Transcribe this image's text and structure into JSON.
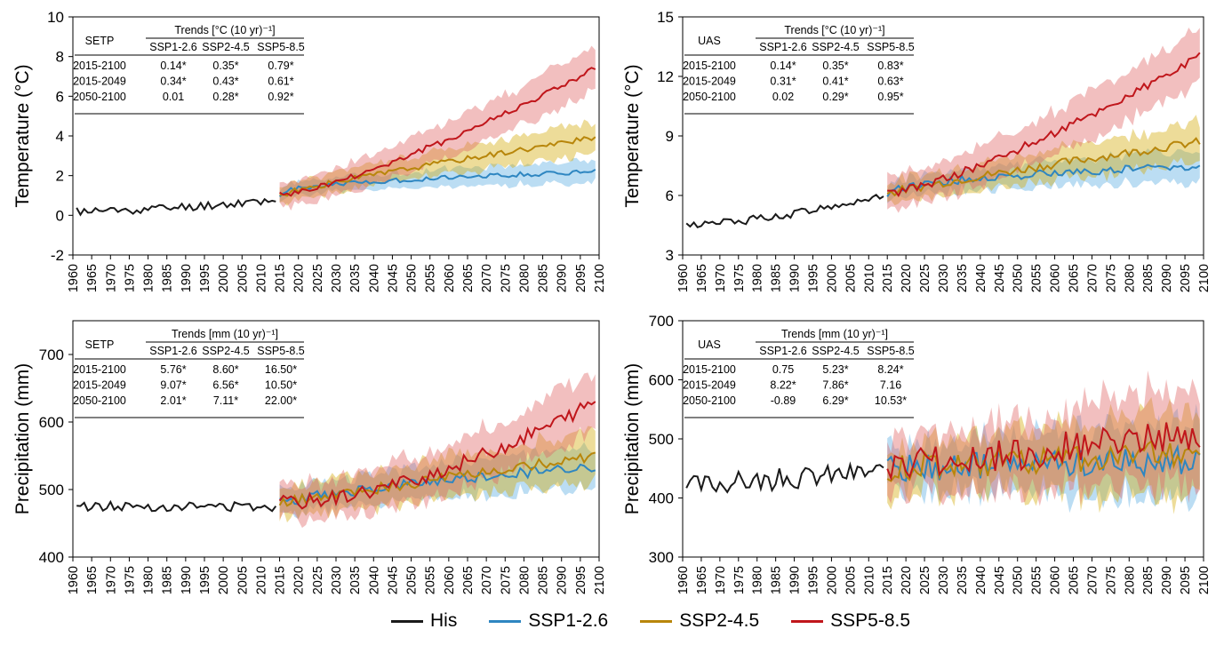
{
  "legend": [
    {
      "label": "His",
      "color": "#1a1a1a"
    },
    {
      "label": "SSP1-2.6",
      "color": "#2e86c1"
    },
    {
      "label": "SSP2-4.5",
      "color": "#b8860b"
    },
    {
      "label": "SSP5-8.5",
      "color": "#c0161b"
    }
  ],
  "colors": {
    "his": "#1a1a1a",
    "ssp126": "#2e86c1",
    "ssp126_band": "#5dade2",
    "ssp245": "#b8860b",
    "ssp245_band": "#d4ac0d",
    "ssp585": "#c0161b",
    "ssp585_band": "#e06666"
  },
  "chart_data": [
    {
      "id": "setp-temp",
      "type": "line",
      "ylabel": "Temperature (°C)",
      "xlim": [
        1960,
        2100
      ],
      "ylim": [
        -2,
        10
      ],
      "yticks": [
        "-2",
        "0",
        "2",
        "4",
        "6",
        "8",
        "10"
      ],
      "xticks": [
        "1960",
        "1965",
        "1970",
        "1975",
        "1980",
        "1985",
        "1990",
        "1995",
        "2000",
        "2005",
        "2010",
        "2015",
        "2020",
        "2025",
        "2030",
        "2035",
        "2040",
        "2045",
        "2050",
        "2055",
        "2060",
        "2065",
        "2070",
        "2075",
        "2080",
        "2085",
        "2090",
        "2095",
        "2100"
      ],
      "his": {
        "start": 0.2,
        "end": 0.8,
        "noise": 0.22,
        "band": 0,
        "seed": 11,
        "x0": 1961,
        "x1": 2014,
        "bend": 1.6
      },
      "ssp126": {
        "start": 1.0,
        "end": 2.2,
        "noise": 0.12,
        "band": 0.55,
        "seed": 21,
        "x0": 2015,
        "x1": 2099,
        "bend": 0.45
      },
      "ssp245": {
        "start": 1.0,
        "end": 3.9,
        "noise": 0.14,
        "band": 0.8,
        "seed": 31,
        "x0": 2015,
        "x1": 2099,
        "bend": 0.85
      },
      "ssp585": {
        "start": 1.0,
        "end": 7.4,
        "noise": 0.16,
        "band": 1.1,
        "seed": 41,
        "x0": 2015,
        "x1": 2099,
        "bend": 1.3
      },
      "table": {
        "region": "SETP",
        "header": "Trends [°C (10 yr)⁻¹]",
        "columns": [
          "SSP1-2.6",
          "SSP2-4.5",
          "SSP5-8.5"
        ],
        "rows": [
          {
            "period": "2015-2100",
            "values": [
              "0.14*",
              "0.35*",
              "0.79*"
            ]
          },
          {
            "period": "2015-2049",
            "values": [
              "0.34*",
              "0.43*",
              "0.61*"
            ]
          },
          {
            "period": "2050-2100",
            "values": [
              "0.01",
              "0.28*",
              "0.92*"
            ]
          }
        ]
      }
    },
    {
      "id": "uas-temp",
      "type": "line",
      "ylabel": "Temperature (°C)",
      "xlim": [
        1960,
        2100
      ],
      "ylim": [
        3,
        15
      ],
      "yticks": [
        "3",
        "6",
        "9",
        "12",
        "15"
      ],
      "xticks": [
        "1960",
        "1965",
        "1970",
        "1975",
        "1980",
        "1985",
        "1990",
        "1995",
        "2000",
        "2005",
        "2010",
        "2015",
        "2020",
        "2025",
        "2030",
        "2035",
        "2040",
        "2045",
        "2050",
        "2055",
        "2060",
        "2065",
        "2070",
        "2075",
        "2080",
        "2085",
        "2090",
        "2095",
        "2100"
      ],
      "his": {
        "start": 4.5,
        "end": 6.0,
        "noise": 0.2,
        "band": 0,
        "seed": 12,
        "x0": 1961,
        "x1": 2014,
        "bend": 1.5
      },
      "ssp126": {
        "start": 6.1,
        "end": 7.5,
        "noise": 0.2,
        "band": 0.8,
        "seed": 22,
        "x0": 2015,
        "x1": 2099,
        "bend": 0.5
      },
      "ssp245": {
        "start": 6.1,
        "end": 8.7,
        "noise": 0.22,
        "band": 1.0,
        "seed": 32,
        "x0": 2015,
        "x1": 2099,
        "bend": 0.9
      },
      "ssp585": {
        "start": 6.1,
        "end": 13.0,
        "noise": 0.22,
        "band": 1.4,
        "seed": 42,
        "x0": 2015,
        "x1": 2099,
        "bend": 1.3
      },
      "table": {
        "region": "UAS",
        "header": "Trends [°C (10 yr)⁻¹]",
        "columns": [
          "SSP1-2.6",
          "SSP2-4.5",
          "SSP5-8.5"
        ],
        "rows": [
          {
            "period": "2015-2100",
            "values": [
              "0.14*",
              "0.35*",
              "0.83*"
            ]
          },
          {
            "period": "2015-2049",
            "values": [
              "0.31*",
              "0.41*",
              "0.63*"
            ]
          },
          {
            "period": "2050-2100",
            "values": [
              "0.02",
              "0.29*",
              "0.95*"
            ]
          }
        ]
      }
    },
    {
      "id": "setp-precip",
      "type": "line",
      "ylabel": "Precipitation (mm)",
      "xlim": [
        1960,
        2100
      ],
      "ylim": [
        400,
        750
      ],
      "yticks": [
        "400",
        "500",
        "600",
        "700"
      ],
      "yticks_values": [
        400,
        500,
        600,
        700
      ],
      "xticks": [
        "1960",
        "1965",
        "1970",
        "1975",
        "1980",
        "1985",
        "1990",
        "1995",
        "2000",
        "2005",
        "2010",
        "2015",
        "2020",
        "2025",
        "2030",
        "2035",
        "2040",
        "2045",
        "2050",
        "2055",
        "2060",
        "2065",
        "2070",
        "2075",
        "2080",
        "2085",
        "2090",
        "2095",
        "2100"
      ],
      "his": {
        "start": 475,
        "end": 475,
        "noise": 7,
        "band": 0,
        "seed": 13,
        "x0": 1961,
        "x1": 2014,
        "bend": 1.0
      },
      "ssp126": {
        "start": 480,
        "end": 535,
        "noise": 8,
        "band": 32,
        "seed": 23,
        "x0": 2015,
        "x1": 2099,
        "bend": 0.8
      },
      "ssp245": {
        "start": 480,
        "end": 550,
        "noise": 8,
        "band": 38,
        "seed": 33,
        "x0": 2015,
        "x1": 2099,
        "bend": 1.0
      },
      "ssp585": {
        "start": 480,
        "end": 630,
        "noise": 11,
        "band": 45,
        "seed": 43,
        "x0": 2015,
        "x1": 2099,
        "bend": 1.7
      },
      "table": {
        "region": "SETP",
        "header": "Trends [mm (10 yr)⁻¹]",
        "columns": [
          "SSP1-2.6",
          "SSP2-4.5",
          "SSP5-8.5"
        ],
        "rows": [
          {
            "period": "2015-2100",
            "values": [
              "5.76*",
              "8.60*",
              "16.50*"
            ]
          },
          {
            "period": "2015-2049",
            "values": [
              "9.07*",
              "6.56*",
              "10.50*"
            ]
          },
          {
            "period": "2050-2100",
            "values": [
              "2.01*",
              "7.11*",
              "22.00*"
            ]
          }
        ]
      }
    },
    {
      "id": "uas-precip",
      "type": "line",
      "ylabel": "Precipitation (mm)",
      "xlim": [
        1960,
        2100
      ],
      "ylim": [
        300,
        700
      ],
      "yticks": [
        "300",
        "400",
        "500",
        "600",
        "700"
      ],
      "xticks": [
        "1960",
        "1965",
        "1970",
        "1975",
        "1980",
        "1985",
        "1990",
        "1995",
        "2000",
        "2005",
        "2010",
        "2015",
        "2020",
        "2025",
        "2030",
        "2035",
        "2040",
        "2045",
        "2050",
        "2055",
        "2060",
        "2065",
        "2070",
        "2075",
        "2080",
        "2085",
        "2090",
        "2095",
        "2100"
      ],
      "his": {
        "start": 420,
        "end": 445,
        "noise": 18,
        "band": 0,
        "seed": 14,
        "x0": 1961,
        "x1": 2014,
        "bend": 1.0
      },
      "ssp126": {
        "start": 450,
        "end": 465,
        "noise": 24,
        "band": 65,
        "seed": 24,
        "x0": 2015,
        "x1": 2099,
        "bend": 1.0
      },
      "ssp245": {
        "start": 450,
        "end": 480,
        "noise": 24,
        "band": 70,
        "seed": 34,
        "x0": 2015,
        "x1": 2099,
        "bend": 1.0
      },
      "ssp585": {
        "start": 450,
        "end": 510,
        "noise": 28,
        "band": 80,
        "seed": 44,
        "x0": 2015,
        "x1": 2099,
        "bend": 1.0
      },
      "table": {
        "region": "UAS",
        "header": "Trends [mm (10 yr)⁻¹]",
        "columns": [
          "SSP1-2.6",
          "SSP2-4.5",
          "SSP5-8.5"
        ],
        "rows": [
          {
            "period": "2015-2100",
            "values": [
              "0.75",
              "5.23*",
              "8.24*"
            ]
          },
          {
            "period": "2015-2049",
            "values": [
              "8.22*",
              "7.86*",
              "7.16"
            ]
          },
          {
            "period": "2050-2100",
            "values": [
              "-0.89",
              "6.29*",
              "10.53*"
            ]
          }
        ]
      }
    }
  ]
}
